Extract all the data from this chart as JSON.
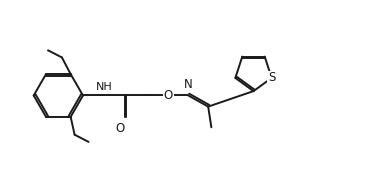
{
  "background": "#ffffff",
  "line_color": "#1a1a1a",
  "line_width": 1.4,
  "font_size": 8.5,
  "figsize": [
    3.79,
    1.87
  ],
  "dpi": 100,
  "xlim": [
    0,
    9.5
  ],
  "ylim": [
    0,
    4.5
  ]
}
